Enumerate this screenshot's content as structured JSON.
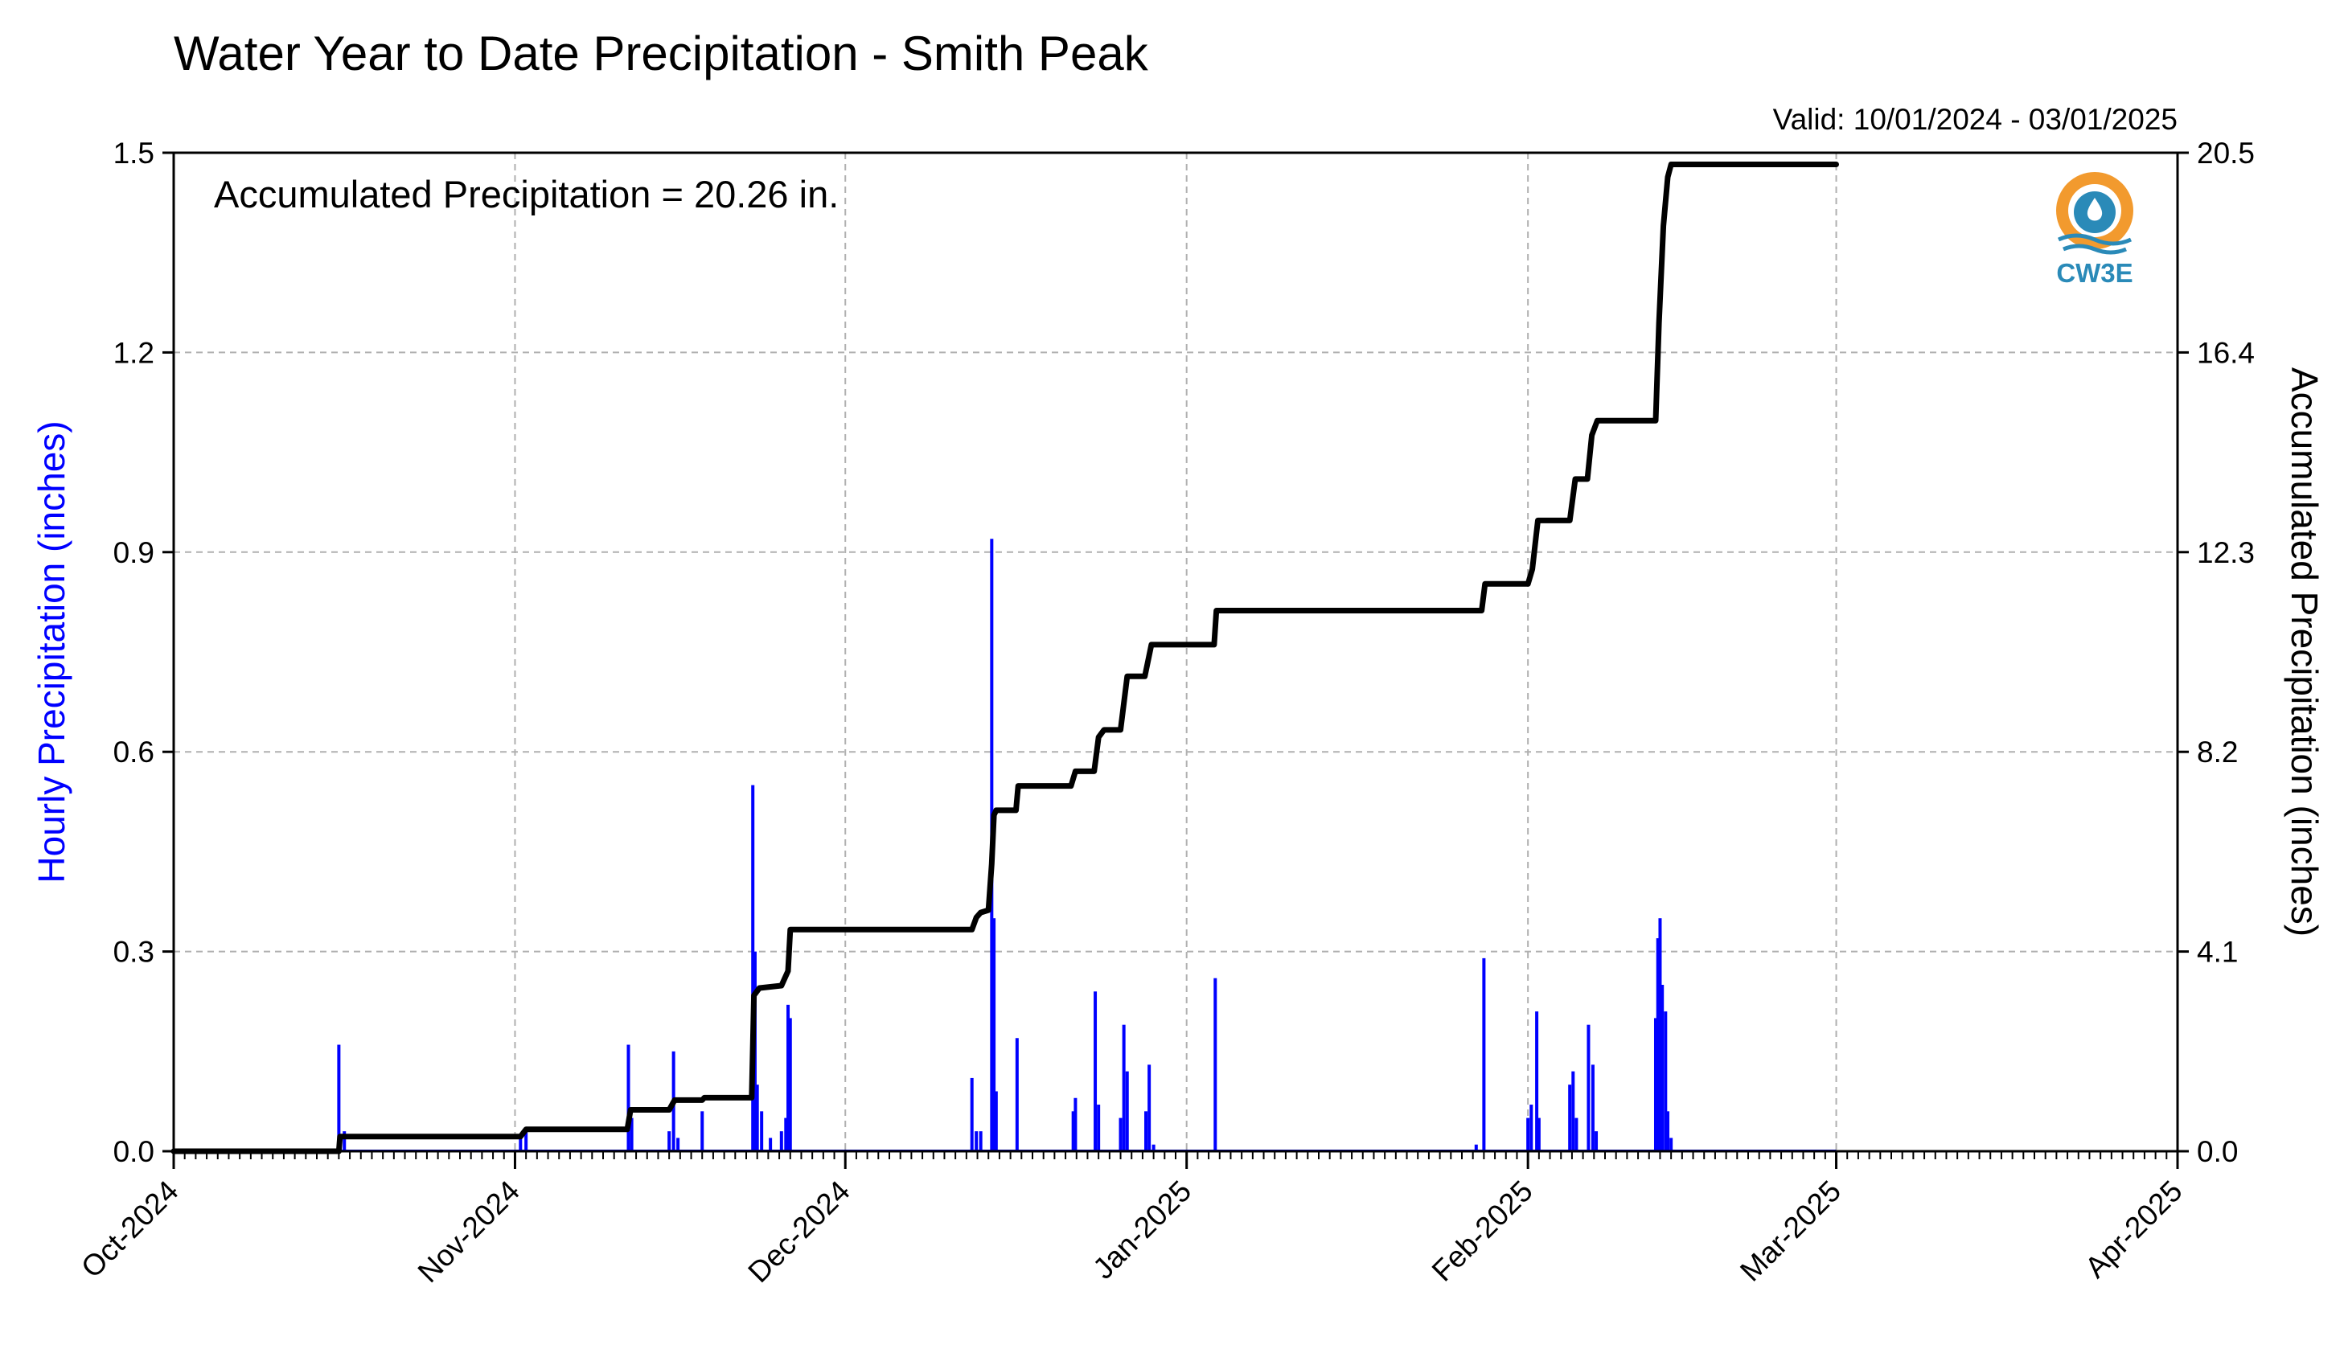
{
  "title": "Water Year to Date Precipitation - Smith Peak",
  "valid_text": "Valid: 10/01/2024 - 03/01/2025",
  "annotation": "Accumulated Precipitation = 20.26 in.",
  "logo_text": "CW3E",
  "colors": {
    "hourly": "#0000ff",
    "accumulated": "#000000",
    "logo_orange": "#f29a2e",
    "logo_blue": "#2a8ab8"
  },
  "chart_data": {
    "type": "line",
    "grid": true,
    "x_range": [
      "2024-10-01",
      "2025-04-01"
    ],
    "x_ticks": [
      "Oct-2024",
      "Nov-2024",
      "Dec-2024",
      "Jan-2025",
      "Feb-2025",
      "Mar-2025",
      "Apr-2025"
    ],
    "y_left": {
      "label": "Hourly Precipitation (inches)",
      "range": [
        0,
        1.5
      ],
      "ticks": [
        "0.0",
        "0.3",
        "0.6",
        "0.9",
        "1.2",
        "1.5"
      ]
    },
    "y_right": {
      "label": "Accumulated Precipitation (inches)",
      "range": [
        0,
        20.5
      ],
      "ticks": [
        "0.0",
        "4.1",
        "8.2",
        "12.3",
        "16.4",
        "20.5"
      ]
    },
    "series": [
      {
        "name": "Hourly Precipitation",
        "kind": "bar",
        "axis": "left",
        "points": [
          [
            "2024-10-16",
            0.16
          ],
          [
            "2024-10-16.5",
            0.03
          ],
          [
            "2024-11-01.5",
            0.02
          ],
          [
            "2024-11-02",
            0.03
          ],
          [
            "2024-11-11.3",
            0.16
          ],
          [
            "2024-11-11.6",
            0.05
          ],
          [
            "2024-11-15",
            0.03
          ],
          [
            "2024-11-15.4",
            0.15
          ],
          [
            "2024-11-15.8",
            0.02
          ],
          [
            "2024-11-18",
            0.06
          ],
          [
            "2024-11-22.6",
            0.55
          ],
          [
            "2024-11-22.8",
            0.3
          ],
          [
            "2024-11-23",
            0.1
          ],
          [
            "2024-11-23.4",
            0.06
          ],
          [
            "2024-11-24.2",
            0.02
          ],
          [
            "2024-11-25.2",
            0.03
          ],
          [
            "2024-11-25.6",
            0.05
          ],
          [
            "2024-11-25.8",
            0.22
          ],
          [
            "2024-11-26",
            0.2
          ],
          [
            "2024-12-12.5",
            0.11
          ],
          [
            "2024-12-12.9",
            0.03
          ],
          [
            "2024-12-13.3",
            0.03
          ],
          [
            "2024-12-14.3",
            0.92
          ],
          [
            "2024-12-14.5",
            0.35
          ],
          [
            "2024-12-14.7",
            0.09
          ],
          [
            "2024-12-16.6",
            0.17
          ],
          [
            "2024-12-21.7",
            0.06
          ],
          [
            "2024-12-21.9",
            0.08
          ],
          [
            "2024-12-23.7",
            0.24
          ],
          [
            "2024-12-24",
            0.07
          ],
          [
            "2024-12-26",
            0.05
          ],
          [
            "2024-12-26.3",
            0.19
          ],
          [
            "2024-12-26.6",
            0.12
          ],
          [
            "2024-12-28.3",
            0.06
          ],
          [
            "2024-12-28.6",
            0.13
          ],
          [
            "2024-12-29",
            0.01
          ],
          [
            "2025-01-03.6",
            0.26
          ],
          [
            "2025-01-27.3",
            0.01
          ],
          [
            "2025-01-28",
            0.29
          ],
          [
            "2025-02-01",
            0.05
          ],
          [
            "2025-02-01.3",
            0.07
          ],
          [
            "2025-02-01.8",
            0.21
          ],
          [
            "2025-02-02",
            0.05
          ],
          [
            "2025-02-04.8",
            0.1
          ],
          [
            "2025-02-05.1",
            0.12
          ],
          [
            "2025-02-05.4",
            0.05
          ],
          [
            "2025-02-06.5",
            0.19
          ],
          [
            "2025-02-06.9",
            0.13
          ],
          [
            "2025-02-07.2",
            0.03
          ],
          [
            "2025-02-12.6",
            0.2
          ],
          [
            "2025-02-12.8",
            0.32
          ],
          [
            "2025-02-13",
            0.35
          ],
          [
            "2025-02-13.2",
            0.25
          ],
          [
            "2025-02-13.5",
            0.21
          ],
          [
            "2025-02-13.7",
            0.06
          ],
          [
            "2025-02-14",
            0.02
          ]
        ]
      },
      {
        "name": "Accumulated Precipitation",
        "kind": "line",
        "axis": "right",
        "points": [
          [
            "2024-10-01",
            0
          ],
          [
            "2024-10-16",
            0
          ],
          [
            "2024-10-16.1",
            0.3
          ],
          [
            "2024-11-01.5",
            0.3
          ],
          [
            "2024-11-02",
            0.45
          ],
          [
            "2024-11-11.2",
            0.45
          ],
          [
            "2024-11-11.5",
            0.85
          ],
          [
            "2024-11-15",
            0.85
          ],
          [
            "2024-11-15.5",
            1.05
          ],
          [
            "2024-11-18",
            1.05
          ],
          [
            "2024-11-18.2",
            1.1
          ],
          [
            "2024-11-22.5",
            1.1
          ],
          [
            "2024-11-22.7",
            3.2
          ],
          [
            "2024-11-23.2",
            3.35
          ],
          [
            "2024-11-25.2",
            3.4
          ],
          [
            "2024-11-25.8",
            3.7
          ],
          [
            "2024-11-26",
            4.55
          ],
          [
            "2024-12-12.5",
            4.55
          ],
          [
            "2024-12-12.9",
            4.8
          ],
          [
            "2024-12-13.3",
            4.9
          ],
          [
            "2024-12-14",
            4.95
          ],
          [
            "2024-12-14.3",
            5.9
          ],
          [
            "2024-12-14.5",
            6.9
          ],
          [
            "2024-12-14.7",
            7.0
          ],
          [
            "2024-12-16.5",
            7.0
          ],
          [
            "2024-12-16.7",
            7.5
          ],
          [
            "2024-12-21.5",
            7.5
          ],
          [
            "2024-12-21.9",
            7.8
          ],
          [
            "2024-12-23.6",
            7.8
          ],
          [
            "2024-12-24",
            8.5
          ],
          [
            "2024-12-24.5",
            8.65
          ],
          [
            "2024-12-26",
            8.65
          ],
          [
            "2024-12-26.6",
            9.75
          ],
          [
            "2024-12-28.2",
            9.75
          ],
          [
            "2024-12-28.8",
            10.4
          ],
          [
            "2025-01-03.5",
            10.4
          ],
          [
            "2025-01-03.7",
            11.1
          ],
          [
            "2025-01-27.8",
            11.1
          ],
          [
            "2025-01-28.1",
            11.65
          ],
          [
            "2025-02-01",
            11.65
          ],
          [
            "2025-02-01.4",
            11.95
          ],
          [
            "2025-02-01.9",
            12.95
          ],
          [
            "2025-02-04.8",
            12.95
          ],
          [
            "2025-02-05.3",
            13.8
          ],
          [
            "2025-02-06.4",
            13.8
          ],
          [
            "2025-02-06.8",
            14.7
          ],
          [
            "2025-02-07.3",
            15.0
          ],
          [
            "2025-02-12.6",
            15.0
          ],
          [
            "2025-02-12.9",
            17.0
          ],
          [
            "2025-02-13.3",
            19.0
          ],
          [
            "2025-02-13.7",
            20.0
          ],
          [
            "2025-02-14",
            20.26
          ],
          [
            "2025-03-01",
            20.26
          ]
        ]
      }
    ]
  }
}
